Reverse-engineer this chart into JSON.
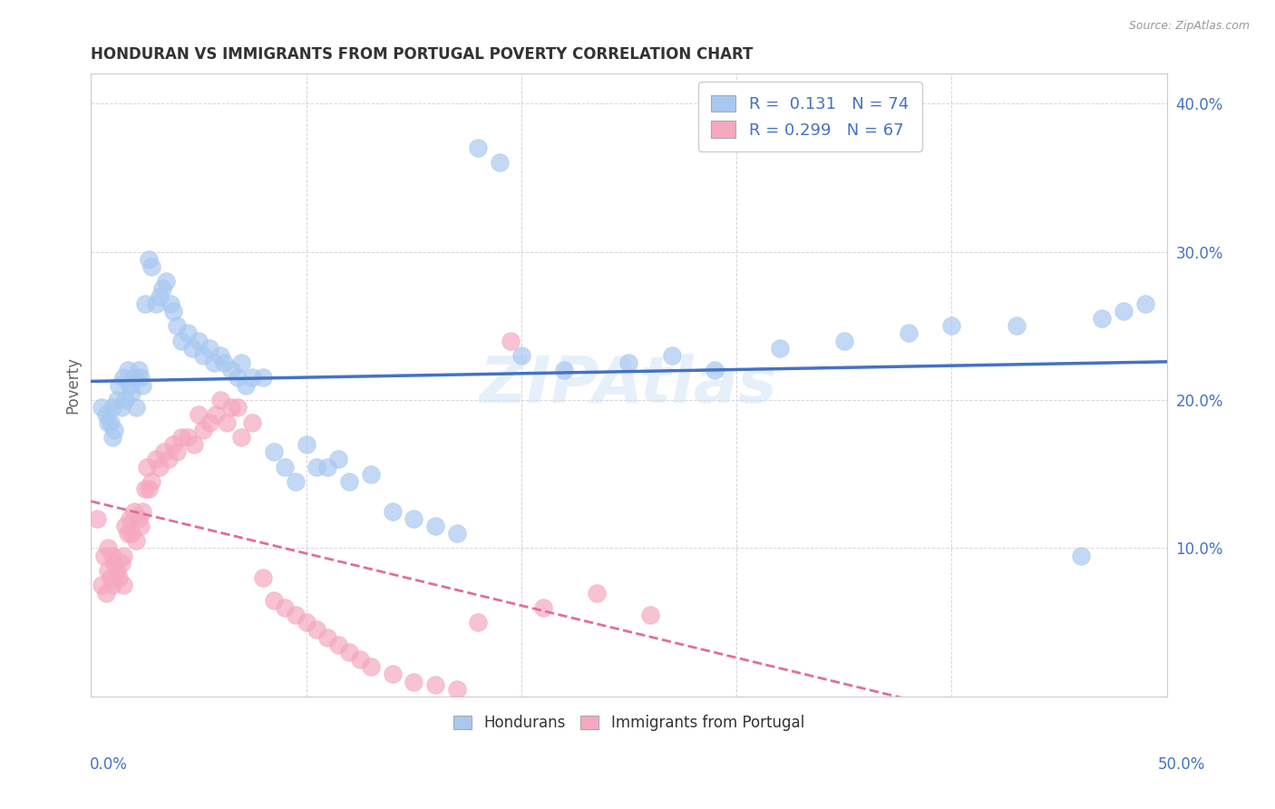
{
  "title": "HONDURAN VS IMMIGRANTS FROM PORTUGAL POVERTY CORRELATION CHART",
  "source": "Source: ZipAtlas.com",
  "ylabel": "Poverty",
  "watermark": "ZIPAtlas",
  "blue_R": 0.131,
  "blue_N": 74,
  "pink_R": 0.299,
  "pink_N": 67,
  "xlim": [
    0.0,
    0.5
  ],
  "ylim": [
    0.0,
    0.42
  ],
  "blue_color": "#A8C8F0",
  "pink_color": "#F5A8BE",
  "blue_line_color": "#4472C4",
  "pink_line_color": "#E07090",
  "grid_color": "#CCCCCC",
  "tick_label_color": "#4472C4",
  "background_color": "#FFFFFF",
  "blue_x": [
    0.005,
    0.007,
    0.008,
    0.009,
    0.01,
    0.01,
    0.011,
    0.012,
    0.013,
    0.014,
    0.015,
    0.016,
    0.017,
    0.018,
    0.019,
    0.02,
    0.021,
    0.022,
    0.023,
    0.024,
    0.025,
    0.027,
    0.028,
    0.03,
    0.032,
    0.033,
    0.035,
    0.037,
    0.038,
    0.04,
    0.042,
    0.045,
    0.047,
    0.05,
    0.052,
    0.055,
    0.057,
    0.06,
    0.062,
    0.065,
    0.068,
    0.07,
    0.072,
    0.075,
    0.08,
    0.085,
    0.09,
    0.095,
    0.1,
    0.105,
    0.11,
    0.115,
    0.12,
    0.13,
    0.14,
    0.15,
    0.16,
    0.17,
    0.18,
    0.19,
    0.2,
    0.22,
    0.25,
    0.27,
    0.29,
    0.32,
    0.35,
    0.38,
    0.4,
    0.43,
    0.46,
    0.47,
    0.48,
    0.49
  ],
  "blue_y": [
    0.195,
    0.19,
    0.185,
    0.185,
    0.175,
    0.195,
    0.18,
    0.2,
    0.21,
    0.195,
    0.215,
    0.2,
    0.22,
    0.21,
    0.205,
    0.215,
    0.195,
    0.22,
    0.215,
    0.21,
    0.265,
    0.295,
    0.29,
    0.265,
    0.27,
    0.275,
    0.28,
    0.265,
    0.26,
    0.25,
    0.24,
    0.245,
    0.235,
    0.24,
    0.23,
    0.235,
    0.225,
    0.23,
    0.225,
    0.22,
    0.215,
    0.225,
    0.21,
    0.215,
    0.215,
    0.165,
    0.155,
    0.145,
    0.17,
    0.155,
    0.155,
    0.16,
    0.145,
    0.15,
    0.125,
    0.12,
    0.115,
    0.11,
    0.37,
    0.36,
    0.23,
    0.22,
    0.225,
    0.23,
    0.22,
    0.235,
    0.24,
    0.245,
    0.25,
    0.25,
    0.095,
    0.255,
    0.26,
    0.265
  ],
  "pink_x": [
    0.003,
    0.005,
    0.006,
    0.007,
    0.008,
    0.008,
    0.009,
    0.01,
    0.01,
    0.011,
    0.012,
    0.013,
    0.014,
    0.015,
    0.015,
    0.016,
    0.017,
    0.018,
    0.019,
    0.02,
    0.021,
    0.022,
    0.023,
    0.024,
    0.025,
    0.026,
    0.027,
    0.028,
    0.03,
    0.032,
    0.034,
    0.036,
    0.038,
    0.04,
    0.042,
    0.045,
    0.048,
    0.05,
    0.052,
    0.055,
    0.058,
    0.06,
    0.063,
    0.065,
    0.068,
    0.07,
    0.075,
    0.08,
    0.085,
    0.09,
    0.095,
    0.1,
    0.105,
    0.11,
    0.115,
    0.12,
    0.125,
    0.13,
    0.14,
    0.15,
    0.16,
    0.17,
    0.18,
    0.195,
    0.21,
    0.235,
    0.26
  ],
  "pink_y": [
    0.12,
    0.075,
    0.095,
    0.07,
    0.085,
    0.1,
    0.08,
    0.095,
    0.075,
    0.09,
    0.085,
    0.08,
    0.09,
    0.095,
    0.075,
    0.115,
    0.11,
    0.12,
    0.11,
    0.125,
    0.105,
    0.12,
    0.115,
    0.125,
    0.14,
    0.155,
    0.14,
    0.145,
    0.16,
    0.155,
    0.165,
    0.16,
    0.17,
    0.165,
    0.175,
    0.175,
    0.17,
    0.19,
    0.18,
    0.185,
    0.19,
    0.2,
    0.185,
    0.195,
    0.195,
    0.175,
    0.185,
    0.08,
    0.065,
    0.06,
    0.055,
    0.05,
    0.045,
    0.04,
    0.035,
    0.03,
    0.025,
    0.02,
    0.015,
    0.01,
    0.008,
    0.005,
    0.05,
    0.24,
    0.06,
    0.07,
    0.055
  ]
}
